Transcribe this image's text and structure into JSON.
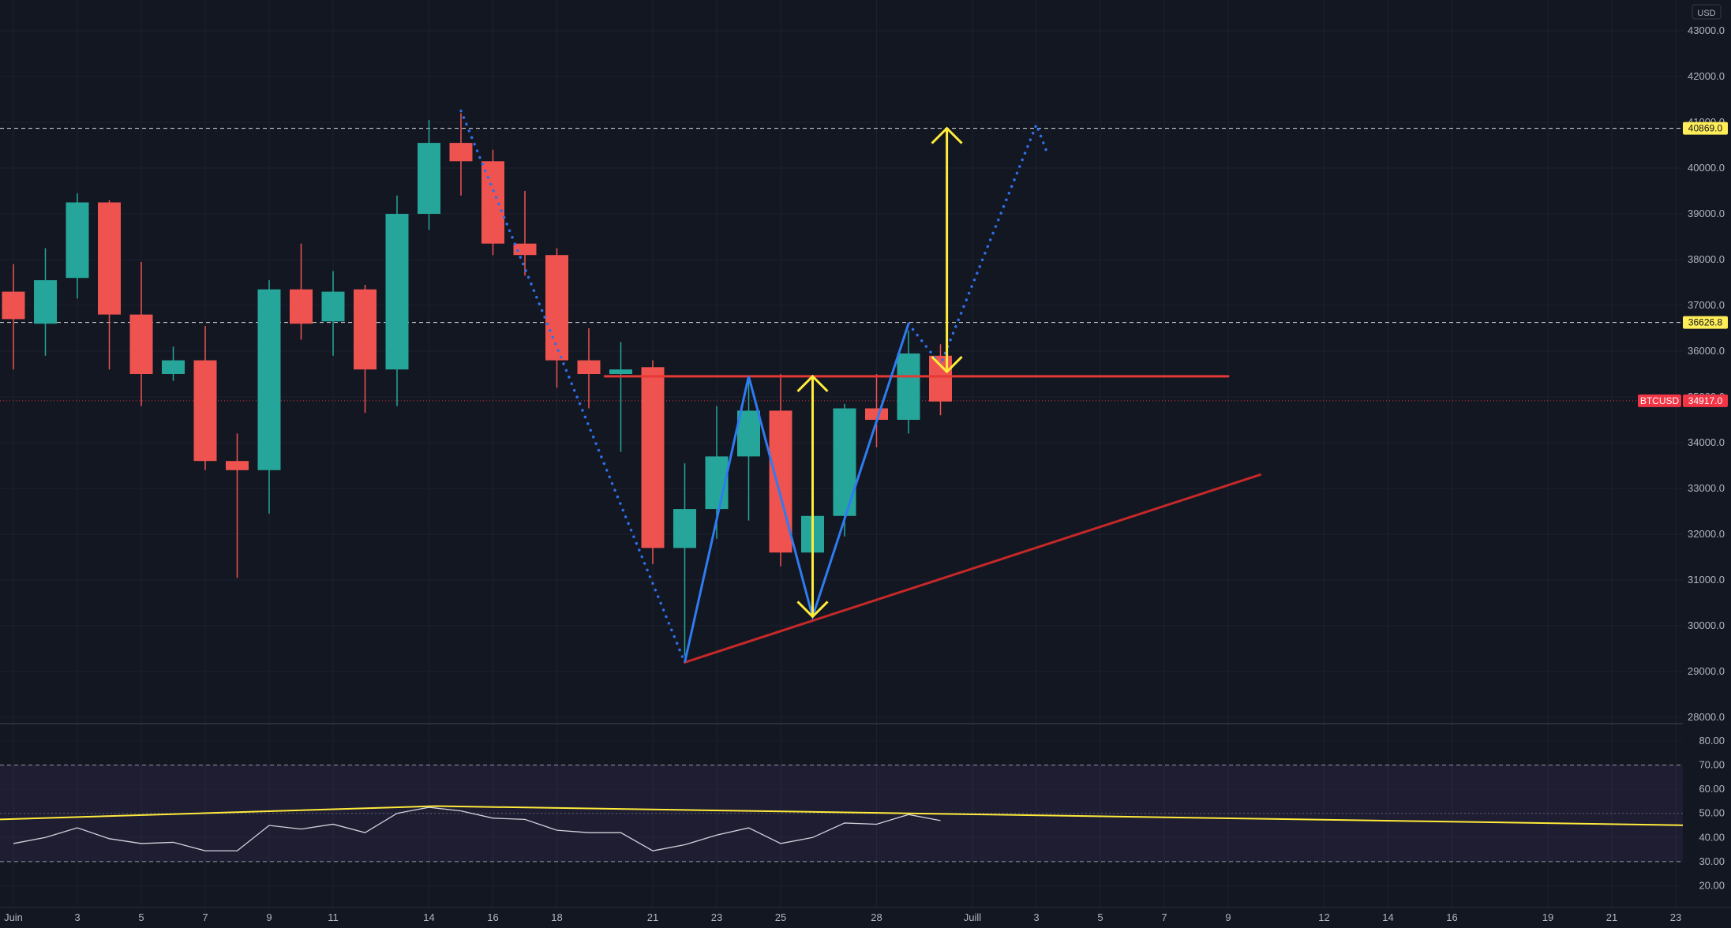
{
  "chart_data": [
    {
      "type": "candlestick",
      "currency": "USD",
      "ylim": [
        27500,
        43500
      ],
      "y_ticks": [
        28000,
        29000,
        30000,
        31000,
        32000,
        33000,
        34000,
        35000,
        36000,
        37000,
        38000,
        39000,
        40000,
        41000,
        42000,
        43000
      ],
      "y_tick_labels": [
        "28000.0",
        "29000.0",
        "30000.0",
        "31000.0",
        "32000.0",
        "33000.0",
        "34000.0",
        "35000.0",
        "36000.0",
        "37000.0",
        "38000.0",
        "39000.0",
        "40000.0",
        "41000.0",
        "42000.0",
        "43000.0"
      ],
      "x_tick_labels": [
        {
          "day": 0,
          "label": "Juin"
        },
        {
          "day": 2,
          "label": "3"
        },
        {
          "day": 4,
          "label": "5"
        },
        {
          "day": 6,
          "label": "7"
        },
        {
          "day": 8,
          "label": "9"
        },
        {
          "day": 10,
          "label": "11"
        },
        {
          "day": 13,
          "label": "14"
        },
        {
          "day": 15,
          "label": "16"
        },
        {
          "day": 17,
          "label": "18"
        },
        {
          "day": 20,
          "label": "21"
        },
        {
          "day": 22,
          "label": "23"
        },
        {
          "day": 24,
          "label": "25"
        },
        {
          "day": 27,
          "label": "28"
        },
        {
          "day": 30,
          "label": "Juill"
        },
        {
          "day": 32,
          "label": "3"
        },
        {
          "day": 34,
          "label": "5"
        },
        {
          "day": 36,
          "label": "7"
        },
        {
          "day": 38,
          "label": "9"
        },
        {
          "day": 41,
          "label": "12"
        },
        {
          "day": 43,
          "label": "14"
        },
        {
          "day": 45,
          "label": "16"
        },
        {
          "day": 48,
          "label": "19"
        },
        {
          "day": 50,
          "label": "21"
        },
        {
          "day": 52,
          "label": "23"
        }
      ],
      "candles": [
        {
          "day": 0,
          "open": 37300,
          "close": 36700,
          "high": 37900,
          "low": 35600
        },
        {
          "day": 1,
          "open": 36600,
          "close": 37550,
          "high": 38250,
          "low": 35900
        },
        {
          "day": 2,
          "open": 37600,
          "close": 39250,
          "high": 39450,
          "low": 37150
        },
        {
          "day": 3,
          "open": 39250,
          "close": 36800,
          "high": 39300,
          "low": 35600
        },
        {
          "day": 4,
          "open": 36800,
          "close": 35500,
          "high": 37950,
          "low": 34800
        },
        {
          "day": 5,
          "open": 35500,
          "close": 35800,
          "high": 36100,
          "low": 35350
        },
        {
          "day": 6,
          "open": 35800,
          "close": 33600,
          "high": 36550,
          "low": 33400
        },
        {
          "day": 7,
          "open": 33600,
          "close": 33400,
          "high": 34200,
          "low": 31050
        },
        {
          "day": 8,
          "open": 33400,
          "close": 37350,
          "high": 37550,
          "low": 32450
        },
        {
          "day": 9,
          "open": 37350,
          "close": 36600,
          "high": 38350,
          "low": 36250
        },
        {
          "day": 10,
          "open": 36650,
          "close": 37300,
          "high": 37750,
          "low": 35900
        },
        {
          "day": 11,
          "open": 37350,
          "close": 35600,
          "high": 37450,
          "low": 34650
        },
        {
          "day": 12,
          "open": 35600,
          "close": 39000,
          "high": 39400,
          "low": 34800
        },
        {
          "day": 13,
          "open": 39000,
          "close": 40550,
          "high": 41050,
          "low": 38650
        },
        {
          "day": 14,
          "open": 40550,
          "close": 40150,
          "high": 41200,
          "low": 39400
        },
        {
          "day": 15,
          "open": 40150,
          "close": 38350,
          "high": 40400,
          "low": 38100
        },
        {
          "day": 16,
          "open": 38350,
          "close": 38100,
          "high": 39500,
          "low": 37650
        },
        {
          "day": 17,
          "open": 38100,
          "close": 35800,
          "high": 38250,
          "low": 35200
        },
        {
          "day": 18,
          "open": 35800,
          "close": 35500,
          "high": 36500,
          "low": 34750
        },
        {
          "day": 19,
          "open": 35500,
          "close": 35600,
          "high": 36200,
          "low": 33800
        },
        {
          "day": 20,
          "open": 35650,
          "close": 31700,
          "high": 35800,
          "low": 31350
        },
        {
          "day": 21,
          "open": 31700,
          "close": 32550,
          "high": 33550,
          "low": 29350
        },
        {
          "day": 22,
          "open": 32550,
          "close": 33700,
          "high": 34800,
          "low": 31900
        },
        {
          "day": 23,
          "open": 33700,
          "close": 34700,
          "high": 35350,
          "low": 32300
        },
        {
          "day": 24,
          "open": 34700,
          "close": 31600,
          "high": 35500,
          "low": 31300
        },
        {
          "day": 25,
          "open": 31600,
          "close": 32400,
          "high": 32500,
          "low": 31450
        },
        {
          "day": 26,
          "open": 32400,
          "close": 34750,
          "high": 34850,
          "low": 31950
        },
        {
          "day": 27,
          "open": 34750,
          "close": 34500,
          "high": 35500,
          "low": 33900
        },
        {
          "day": 28,
          "open": 34500,
          "close": 35950,
          "high": 36450,
          "low": 34200
        },
        {
          "day": 29,
          "open": 35900,
          "close": 34900,
          "high": 36150,
          "low": 34600
        }
      ],
      "price_lines": [
        {
          "value": 40869.0,
          "label": "40869.0",
          "style": "dashed",
          "color": "#ffffff",
          "badge_color": "#ffee58"
        },
        {
          "value": 36626.8,
          "label": "36626.8",
          "style": "dashed",
          "color": "#ffffff",
          "badge_color": "#ffee58"
        },
        {
          "value": 34917.0,
          "label": "34917.0",
          "style": "dotted",
          "color": "#f23645",
          "badge_color": "#f23645",
          "symbol": "BTCUSD"
        }
      ],
      "drawings": {
        "resistance": {
          "from": [
            18.5,
            35450
          ],
          "to": [
            38,
            35450
          ],
          "color": "#e53935"
        },
        "support": {
          "from": [
            21,
            29200
          ],
          "to": [
            39,
            33300
          ],
          "color": "#c62828"
        },
        "pattern_w": {
          "points": [
            [
              21,
              29200
            ],
            [
              23,
              35450
            ],
            [
              25,
              30200
            ],
            [
              28,
              36600
            ]
          ],
          "color": "#2f7bf0"
        },
        "projection_dotted": {
          "points": [
            [
              14,
              41250
            ],
            [
              21,
              29200
            ]
          ],
          "color": "#2f6fe8"
        },
        "projection_dotted_2": {
          "points": [
            [
              28,
              36600
            ],
            [
              29,
              35700
            ],
            [
              32,
              40950
            ],
            [
              32.3,
              40400
            ]
          ],
          "color": "#2f6fe8"
        },
        "arrows": [
          {
            "day": 25,
            "from": 30200,
            "to": 35450,
            "color": "#ffeb3b"
          },
          {
            "day": 29.2,
            "from": 35550,
            "to": 40869,
            "color": "#ffeb3b"
          }
        ]
      },
      "colors": {
        "up": "#26a69a",
        "down": "#ef5350",
        "background": "#131722",
        "grid": "#1e2230"
      }
    },
    {
      "type": "line",
      "indicator": "oscillator",
      "ylim": [
        15,
        85
      ],
      "y_ticks": [
        20,
        30,
        40,
        50,
        60,
        70,
        80
      ],
      "y_tick_labels": [
        "20.00",
        "30.00",
        "40.00",
        "50.00",
        "60.00",
        "70.00",
        "80.00"
      ],
      "band": {
        "upper": 70,
        "lower": 30,
        "mid": 50
      },
      "series": [
        {
          "x": [
            0,
            1,
            2,
            3,
            4,
            5,
            6,
            7,
            8,
            9,
            10,
            11,
            12,
            13,
            14,
            15,
            16,
            17,
            18,
            19,
            20,
            21,
            22,
            23,
            24,
            25,
            26,
            27,
            28,
            29
          ],
          "values": [
            37.5,
            40,
            44,
            39.5,
            37.5,
            38,
            34.5,
            34.5,
            45,
            43.5,
            45.5,
            42,
            50,
            52.5,
            51,
            48,
            47.5,
            43,
            42,
            42,
            34.5,
            37,
            41,
            44,
            37.5,
            40,
            46,
            45.5,
            49.5,
            47
          ],
          "color": "#d1d4dc"
        }
      ],
      "trendline": {
        "from": [
          0,
          47.5
        ],
        "to": [
          52.6,
          45
        ],
        "via": [
          13.2,
          53
        ],
        "color": "#ffeb3b"
      }
    }
  ]
}
